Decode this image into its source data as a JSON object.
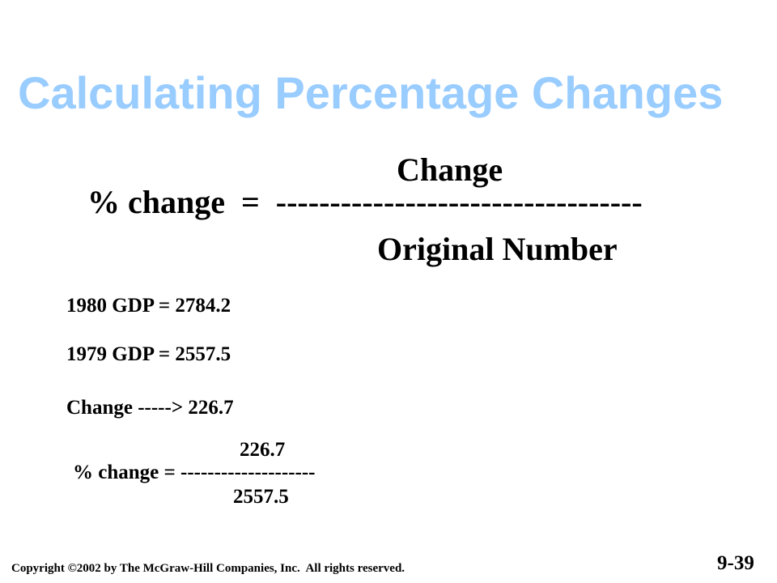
{
  "title": "Calculating Percentage Changes",
  "formula": {
    "numerator": "Change",
    "lhs": "% change  =  ----------------------------------",
    "denominator": "Original Number"
  },
  "lines": [
    "1980 GDP = 2784.2",
    "1979 GDP = 2557.5",
    "Change -----> 226.7"
  ],
  "example": {
    "numerator": "226.7",
    "lhs": "% change = --------------------",
    "denominator": "2557.5"
  },
  "footer": {
    "copyright": "Copyright ©2002 by The McGraw-Hill Companies, Inc.  All rights reserved.",
    "page": "9-39"
  }
}
